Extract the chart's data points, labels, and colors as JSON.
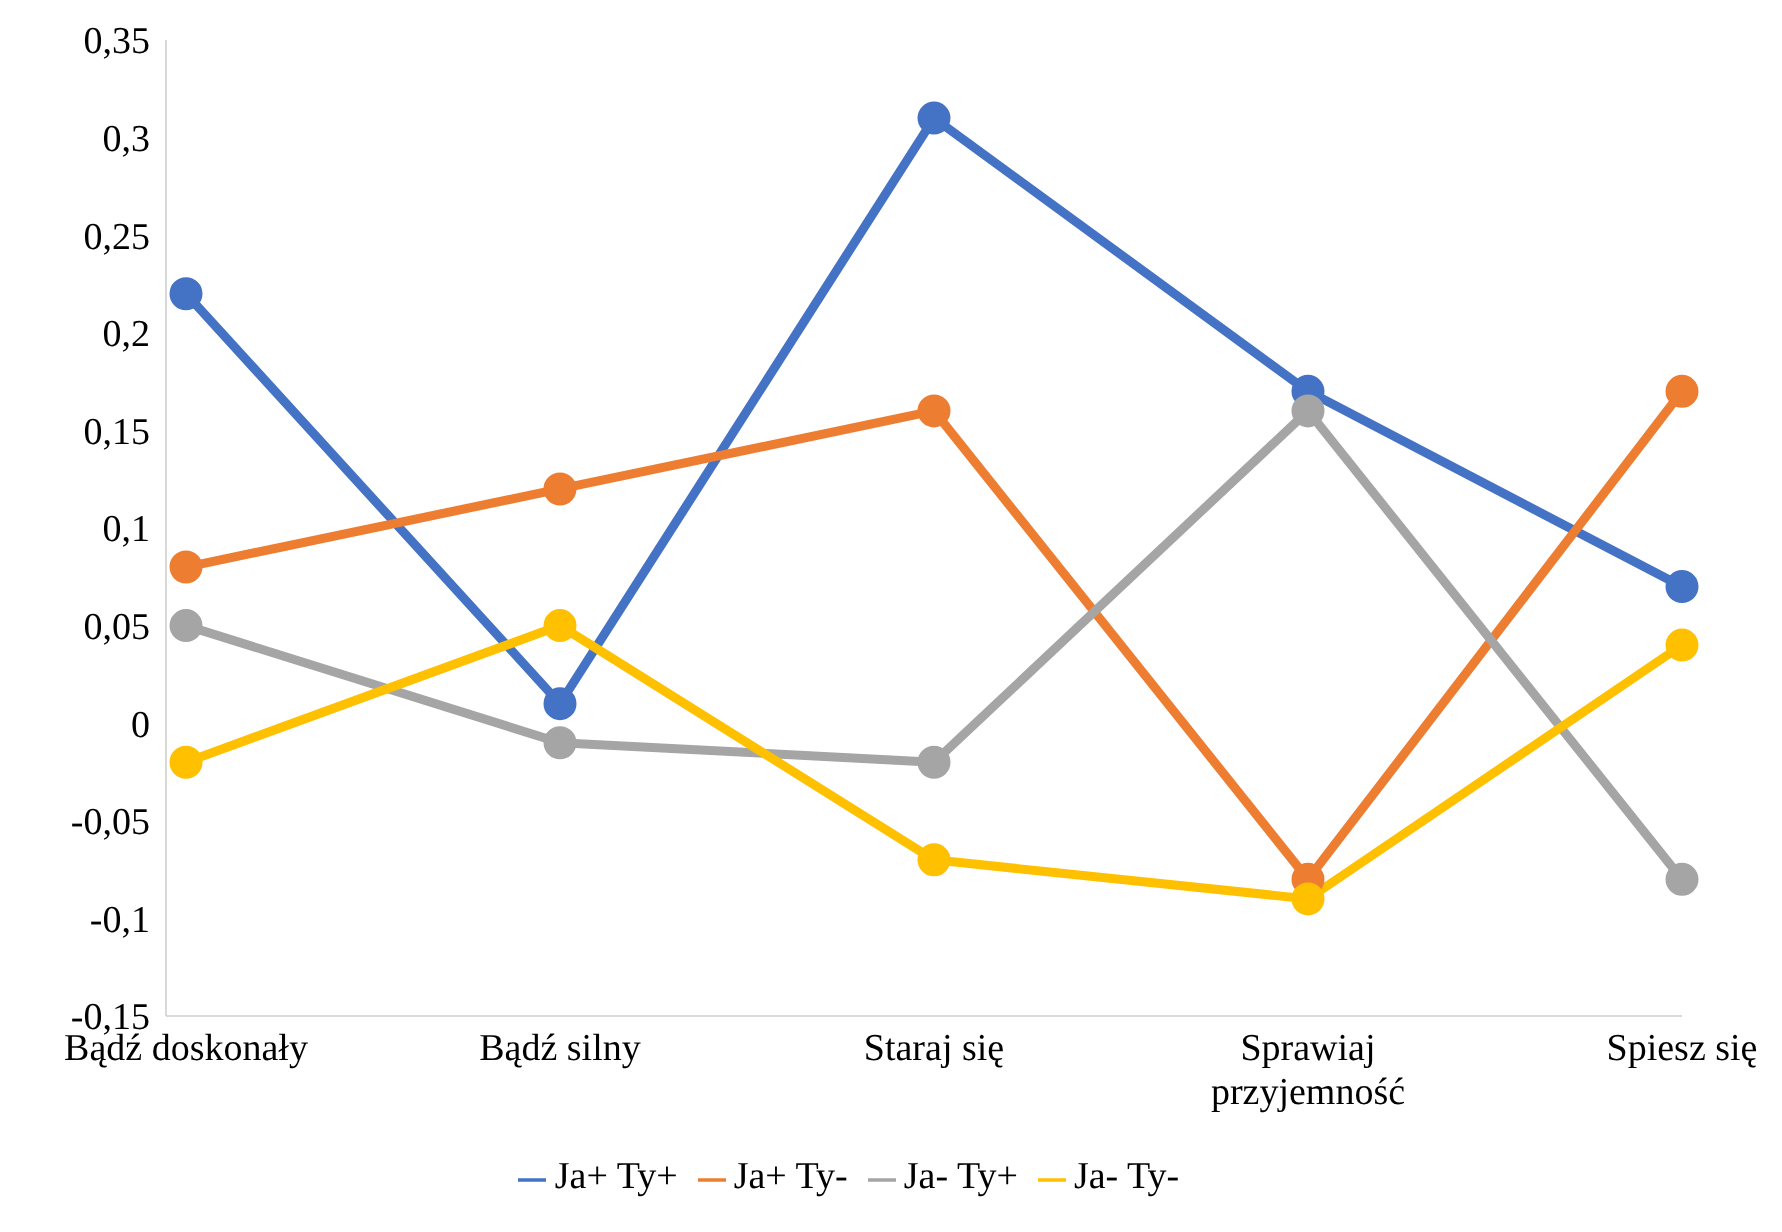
{
  "chart_data": {
    "type": "line",
    "categories": [
      "Bądź doskonały",
      "Bądź silny",
      "Staraj się",
      "Sprawiaj przyjemność",
      "Spiesz się"
    ],
    "series": [
      {
        "name": "Ja+ Ty+",
        "color": "#4472c4",
        "values": [
          0.22,
          0.01,
          0.31,
          0.17,
          0.07
        ]
      },
      {
        "name": "Ja+ Ty-",
        "color": "#ed7d31",
        "values": [
          0.08,
          0.12,
          0.16,
          -0.08,
          0.17
        ]
      },
      {
        "name": "Ja- Ty+",
        "color": "#a5a5a5",
        "values": [
          0.05,
          -0.01,
          -0.02,
          0.16,
          -0.08
        ]
      },
      {
        "name": "Ja- Ty-",
        "color": "#ffc000",
        "values": [
          -0.02,
          0.05,
          -0.07,
          -0.09,
          0.04
        ]
      }
    ],
    "ylim": [
      -0.15,
      0.35
    ],
    "yticks": [
      {
        "value": -0.15,
        "label": "-0,15"
      },
      {
        "value": -0.1,
        "label": "-0,1"
      },
      {
        "value": -0.05,
        "label": "-0,05"
      },
      {
        "value": 0,
        "label": "0"
      },
      {
        "value": 0.05,
        "label": "0,05"
      },
      {
        "value": 0.1,
        "label": "0,1"
      },
      {
        "value": 0.15,
        "label": "0,15"
      },
      {
        "value": 0.2,
        "label": "0,2"
      },
      {
        "value": 0.25,
        "label": "0,25"
      },
      {
        "value": 0.3,
        "label": "0,3"
      },
      {
        "value": 0.35,
        "label": "0,35"
      }
    ],
    "grid": false,
    "legend": "bottom",
    "marker": "circle",
    "line_style": "solid"
  }
}
